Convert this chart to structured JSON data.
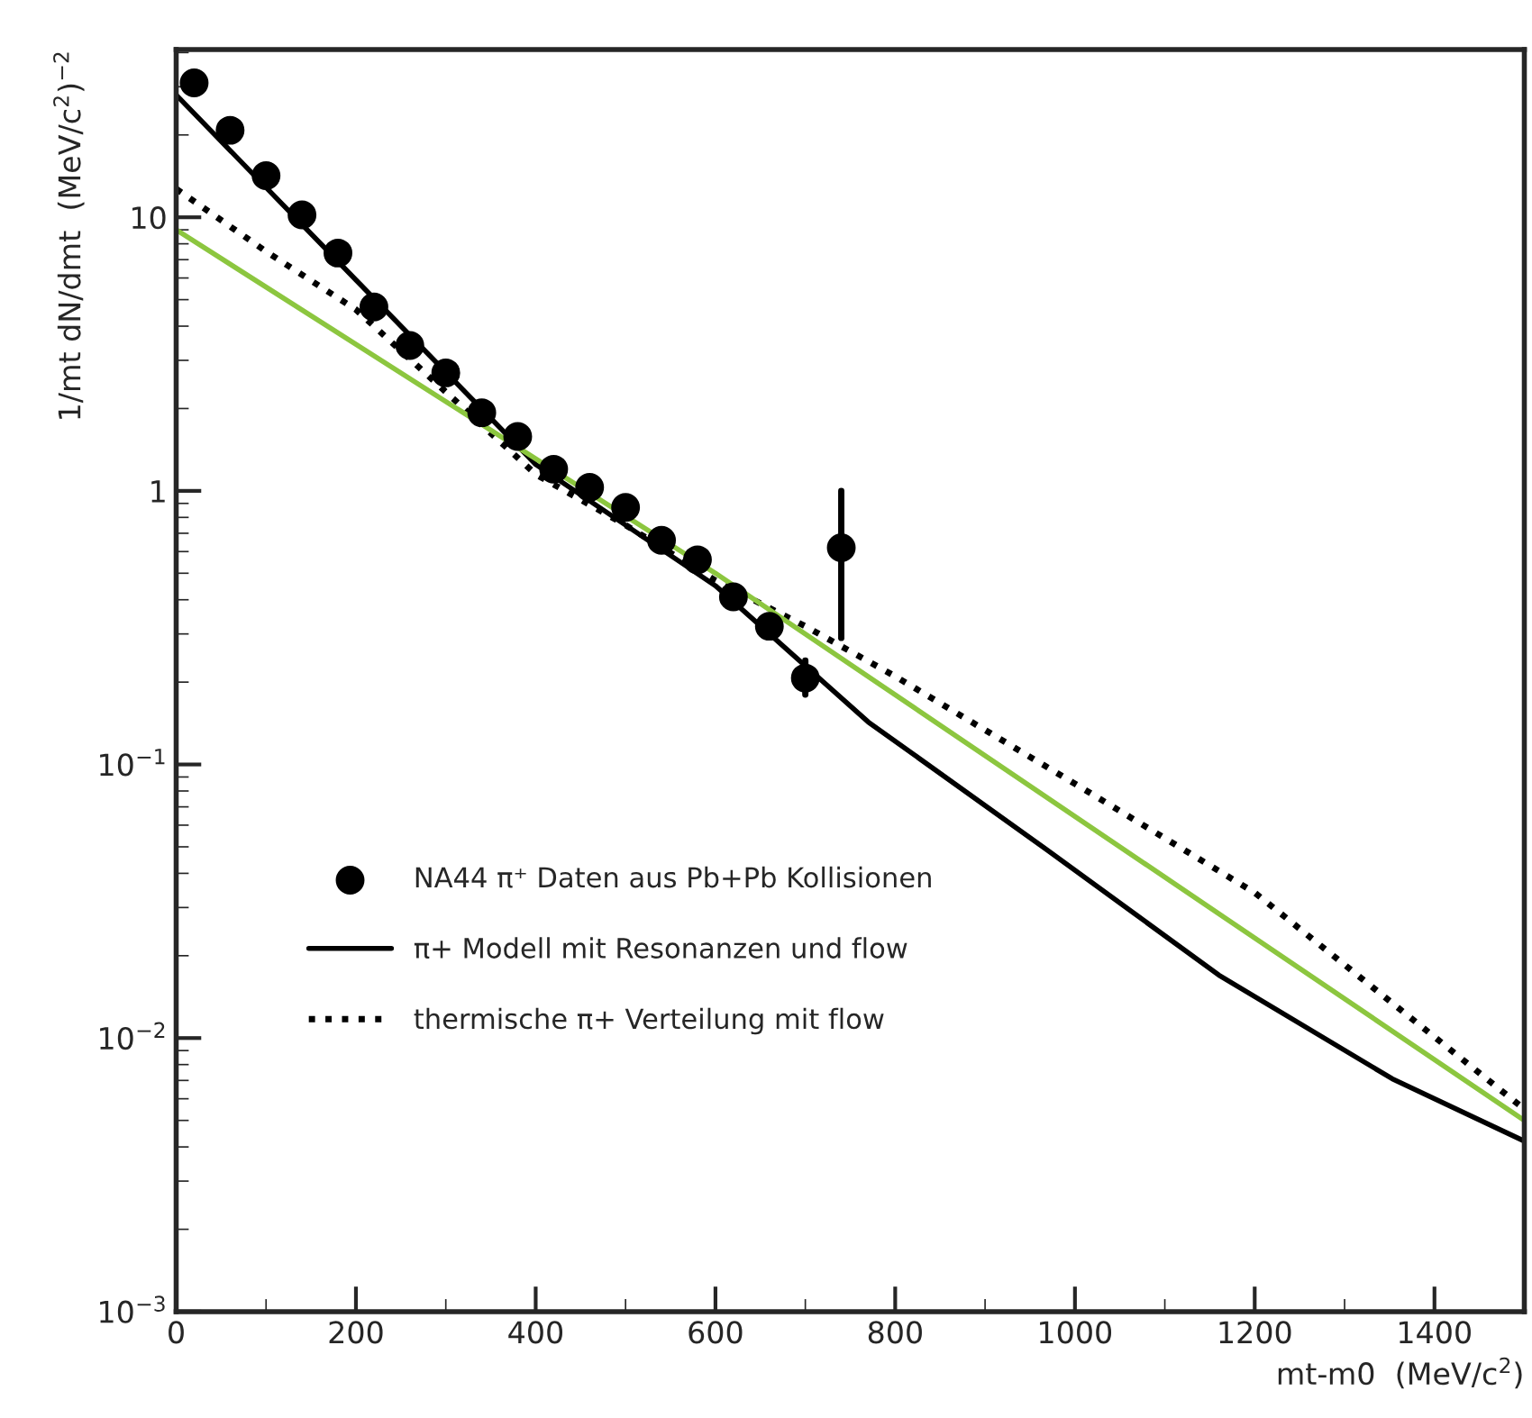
{
  "chart_data": {
    "type": "scatter",
    "xlabel": "mt-m0  (MeV/c$^{2}$)",
    "ylabel": "1/mt dN/dmt  (MeV/c$^{2}$)$^{−2}$",
    "log": "y",
    "grid": false,
    "legend": "bottom left",
    "xlim": [
      0,
      1500
    ],
    "xticks": [
      0,
      200,
      400,
      600,
      800,
      1000,
      1200,
      1400
    ],
    "ylim": [
      0.001,
      41
    ],
    "yticks": [
      {
        "value": 0.001,
        "label": "10$^{−3}$"
      },
      {
        "value": 0.01,
        "label": "10$^{−2}$"
      },
      {
        "value": 0.1,
        "label": "10$^{−1}$"
      },
      1,
      10
    ],
    "series": [
      {
        "name": "NA44 π⁺ Daten aus Pb+Pb Kollisionen",
        "color": "#000000",
        "marker": "circle",
        "x": [
          20,
          60,
          100,
          140,
          180,
          220,
          260,
          300,
          340,
          380,
          420,
          460,
          500,
          540,
          580,
          620,
          660,
          700,
          740
        ],
        "values": [
          31,
          20.8,
          14.2,
          10.2,
          7.4,
          4.7,
          3.4,
          2.7,
          1.93,
          1.58,
          1.2,
          1.03,
          0.87,
          0.66,
          0.56,
          0.41,
          0.32,
          0.207,
          0.62
        ],
        "errors": [
          null,
          null,
          null,
          null,
          null,
          null,
          null,
          null,
          null,
          null,
          null,
          null,
          null,
          null,
          null,
          null,
          null,
          [
            0.18,
            0.24
          ],
          [
            0.29,
            1.0
          ]
        ]
      },
      {
        "name": "π+ Modell mit Resonanzen und flow",
        "type": "line",
        "color": "#000000",
        "line_style": "solid",
        "x": [
          0,
          200,
          400,
          600,
          770,
          968,
          1160,
          1353,
          1500
        ],
        "values": [
          28,
          5.9,
          1.25,
          0.45,
          0.143,
          0.049,
          0.017,
          0.0071,
          0.0042
        ]
      },
      {
        "name": "thermische π+ Verteilung mit flow",
        "type": "line",
        "color": "#000000",
        "line_style": "dotted",
        "x": [
          0,
          100,
          200,
          300,
          400,
          500,
          600,
          700,
          800,
          1000,
          1200,
          1500
        ],
        "values": [
          12.7,
          7.5,
          4.6,
          2.3,
          1.15,
          0.75,
          0.47,
          0.32,
          0.21,
          0.085,
          0.034,
          0.0055
        ]
      },
      {
        "type": "line",
        "color": "#8cc63f",
        "line_style": "solid",
        "x": [
          0,
          600,
          1500
        ],
        "values": [
          9.0,
          0.5,
          0.005
        ]
      }
    ]
  }
}
